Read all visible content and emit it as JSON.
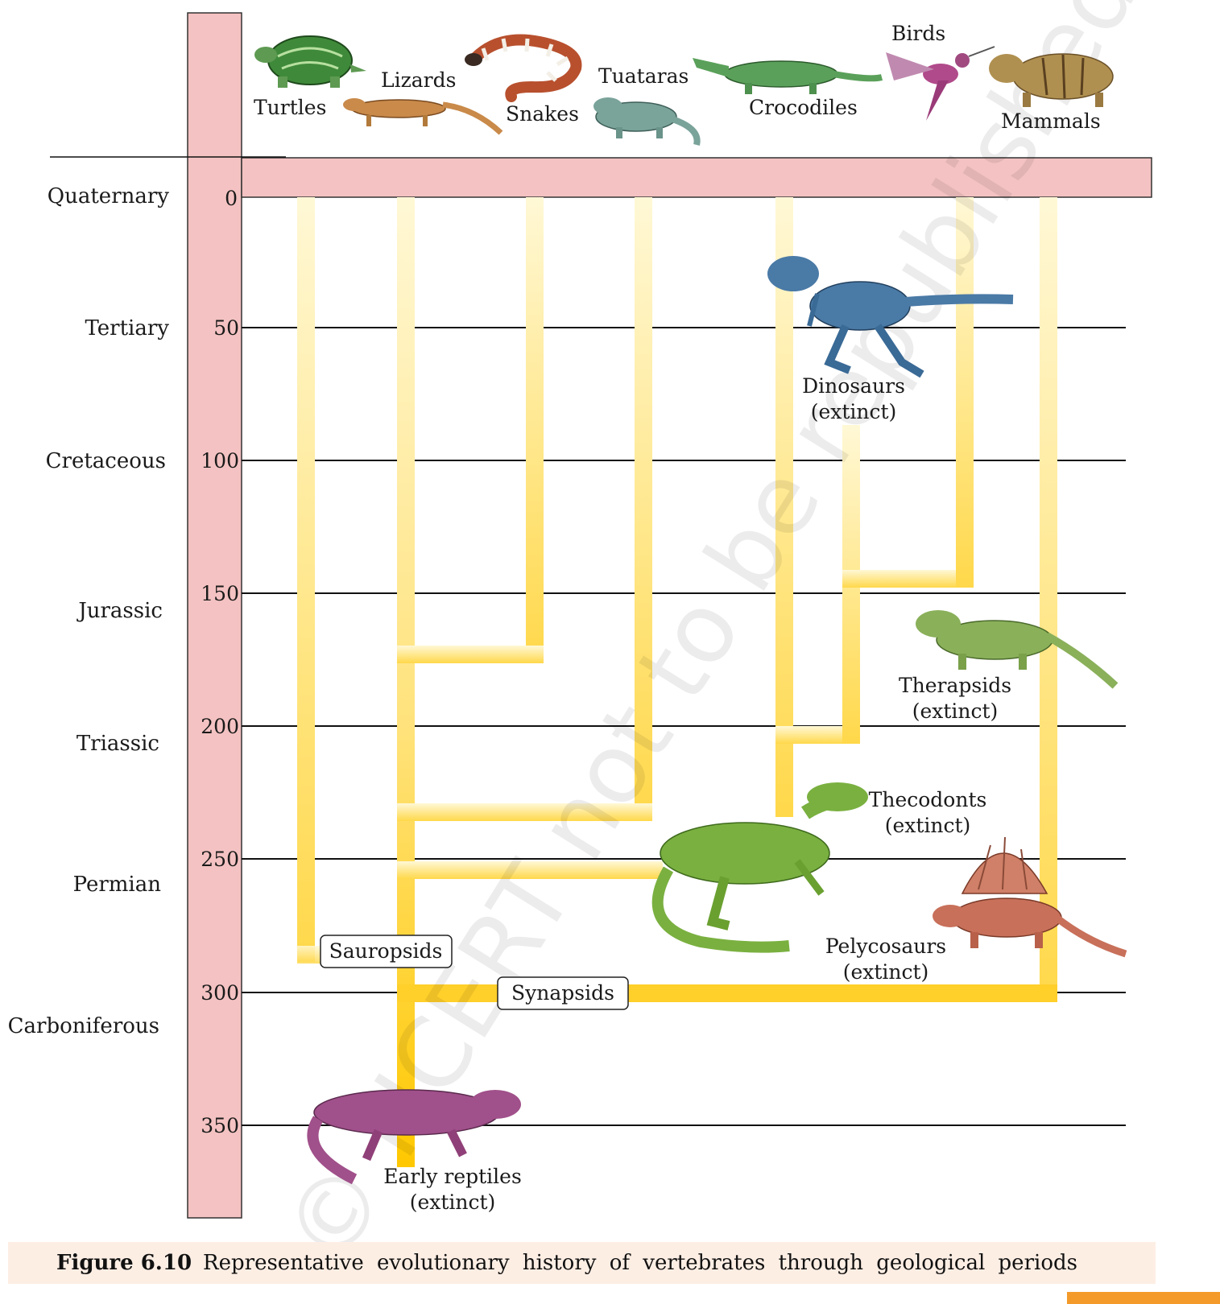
{
  "eras": [
    "Quaternary",
    "Tertiary",
    "Cretaceous",
    "Jurassic",
    "Triassic",
    "Permian",
    "Carboniferous"
  ],
  "ticks": [
    "0",
    "50",
    "100",
    "150",
    "200",
    "250",
    "300",
    "350"
  ],
  "living_groups": {
    "turtles": "Turtles",
    "lizards": "Lizards",
    "snakes": "Snakes",
    "tuataras": "Tuataras",
    "crocodiles": "Crocodiles",
    "birds": "Birds",
    "mammals": "Mammals"
  },
  "extinct_groups": {
    "dinosaurs": [
      "Dinosaurs",
      "(extinct)"
    ],
    "therapsids": [
      "Therapsids",
      "(extinct)"
    ],
    "thecodonts": [
      "Thecodonts",
      "(extinct)"
    ],
    "pelycosaurs": [
      "Pelycosaurs",
      "(extinct)"
    ],
    "early_reptiles": [
      "Early reptiles",
      "(extinct)"
    ]
  },
  "clades": {
    "sauropsids": "Sauropsids",
    "synapsids": "Synapsids"
  },
  "watermark": "© NCERT not to be republished",
  "caption": {
    "number": "Figure 6.10",
    "text": "Representative evolutionary history of vertebrates through geological periods"
  },
  "colors": {
    "timeline_pink": "#f4c2c2",
    "lineage_yellow": "#ffd23a",
    "turtle": "#3f8a3a",
    "lizard": "#c98a4a",
    "snake": "#b8502e",
    "tuatara": "#7aa39a",
    "crocodile": "#5aa05a",
    "bird": "#b04a8a",
    "mammal": "#b09050",
    "dinosaur": "#4a7aa6",
    "therapsid": "#8ab05a",
    "thecodont": "#7ab040",
    "pelycosaur": "#c8705a",
    "early_reptile": "#a0508a"
  }
}
